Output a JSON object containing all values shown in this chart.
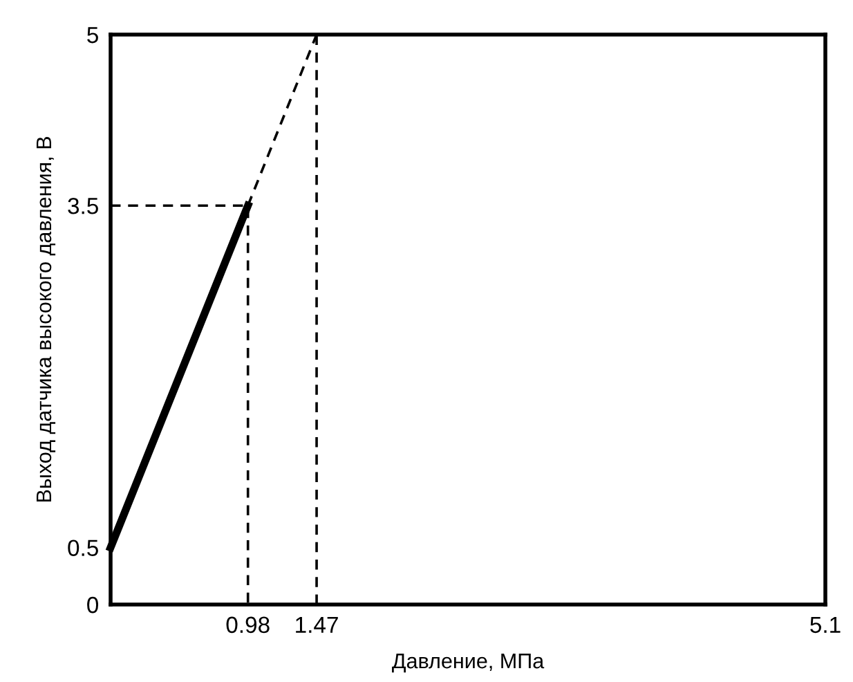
{
  "chart_data": {
    "type": "line",
    "xlabel": "Давление, МПа",
    "ylabel": "Выход датчика высокого давления, В",
    "xlim": [
      0,
      5.1
    ],
    "xticks": [
      0.98,
      1.47,
      5.1
    ],
    "ylim": [
      0,
      5
    ],
    "yticks": [
      0,
      0.5,
      3.5,
      5
    ],
    "legend": false,
    "marker": "none",
    "series": [
      {
        "color": "#000000",
        "x": [
          0,
          0.98
        ],
        "values": [
          0.5,
          3.5
        ],
        "line_style": "solid"
      },
      {
        "color": "#000000",
        "x": [
          0.98,
          1.47
        ],
        "values": [
          3.5,
          5
        ],
        "line_style": "dashed"
      },
      {
        "color": "#000000",
        "x": [
          0,
          0.98,
          0.98
        ],
        "values": [
          3.5,
          3.5,
          0
        ],
        "line_style": "dashed"
      }
    ],
    "ref_lines": [
      {
        "axis": "x",
        "value": 1.47,
        "color": "#000000",
        "line_style": "dashed"
      }
    ]
  }
}
